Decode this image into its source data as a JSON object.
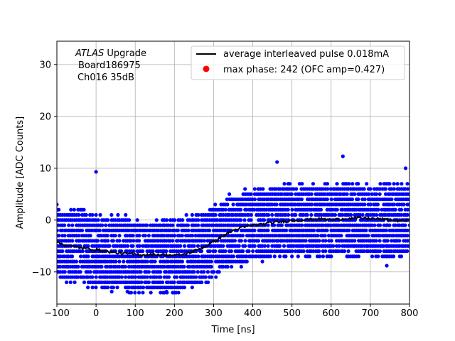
{
  "chart_data": {
    "type": "scatter",
    "title": "",
    "xlabel": "Time [ns]",
    "ylabel": "Amplitude [ADC Counts]",
    "xlim": [
      -100,
      800
    ],
    "ylim": [
      -16.2,
      34.5
    ],
    "x_ticks": [
      -100,
      0,
      100,
      200,
      300,
      400,
      500,
      600,
      700,
      800
    ],
    "y_ticks": [
      -10,
      0,
      10,
      20,
      30
    ],
    "grid": true,
    "legend_position": "top-right",
    "annotation_lines": [
      "ATLAS Upgrade",
      "Board186975",
      "Ch016 35dB"
    ],
    "annotation_italic_word": "ATLAS",
    "colors": {
      "samples": "#0000ff",
      "average": "#000000",
      "max_phase": "#ff0000"
    },
    "series": [
      {
        "name": "average interleaved pulse 0.018mA",
        "kind": "line",
        "x": [
          -100,
          -75,
          -50,
          -25,
          0,
          25,
          50,
          75,
          100,
          125,
          150,
          175,
          200,
          225,
          250,
          275,
          300,
          325,
          350,
          375,
          400,
          425,
          450,
          475,
          500,
          525,
          550,
          575,
          600,
          625,
          650,
          675,
          700,
          725,
          750,
          775,
          800
        ],
        "y": [
          -4.3,
          -4.9,
          -5.2,
          -5.5,
          -5.7,
          -6.0,
          -6.3,
          -6.5,
          -6.6,
          -6.7,
          -6.6,
          -6.7,
          -6.8,
          -6.6,
          -6.0,
          -5.2,
          -4.2,
          -3.0,
          -2.0,
          -1.4,
          -1.0,
          -0.8,
          -0.5,
          -0.3,
          -0.1,
          0.0,
          0.1,
          0.2,
          0.0,
          0.2,
          0.3,
          0.4,
          0.3,
          0.2,
          0.0,
          -0.1,
          -0.1
        ]
      },
      {
        "name": "max phase: 242 (OFC amp=0.427)",
        "kind": "points",
        "x": [],
        "y": []
      },
      {
        "name": "samples",
        "kind": "scatter-band",
        "x_range": [
          -100,
          800
        ],
        "band_center": [
          -4.3,
          -4.9,
          -5.2,
          -5.5,
          -5.7,
          -6.0,
          -6.3,
          -6.5,
          -6.6,
          -6.7,
          -6.6,
          -6.7,
          -6.8,
          -6.6,
          -6.0,
          -5.2,
          -4.2,
          -3.0,
          -2.0,
          -1.4,
          -1.0,
          -0.8,
          -0.5,
          -0.3,
          -0.1,
          0.0,
          0.1,
          0.2,
          0.0,
          0.2,
          0.3,
          0.4,
          0.3,
          0.2,
          0.0,
          -0.1,
          -0.1
        ],
        "band_halfwidth": 6,
        "outliers": [
          [
            0,
            9.3
          ],
          [
            462,
            11.2
          ],
          [
            630,
            12.3
          ],
          [
            790,
            10.0
          ],
          [
            742,
            -8.8
          ],
          [
            40,
            -13.8
          ],
          [
            80,
            -13.8
          ],
          [
            180,
            -13.8
          ]
        ]
      }
    ]
  }
}
